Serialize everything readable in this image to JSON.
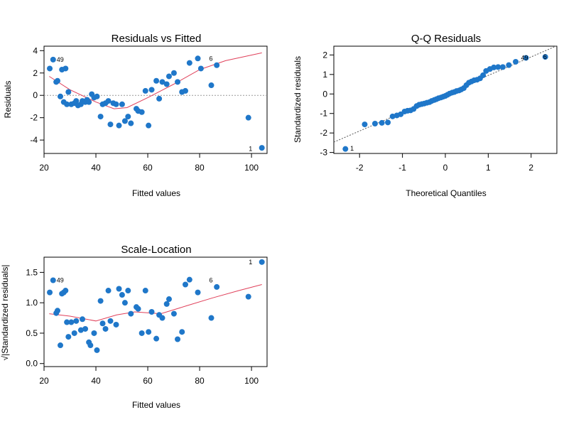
{
  "colors": {
    "points": "#1f77c9",
    "smooth": "#e0405a",
    "frame": "#000000",
    "reference": "#9a9a9a"
  },
  "chart_data": [
    {
      "type": "scatter",
      "title": "Residuals vs Fitted",
      "xlabel": "Fitted values",
      "ylabel": "Residuals",
      "xlim": [
        20,
        106
      ],
      "ylim": [
        -5.2,
        4.4
      ],
      "xticks": [
        20,
        40,
        60,
        80,
        100
      ],
      "yticks": [
        -4,
        -2,
        0,
        2,
        4
      ],
      "reference_line": {
        "y": 0,
        "style": "dotted"
      },
      "point_labels": [
        {
          "text": "49",
          "x": 23.5,
          "y": 3.2
        },
        {
          "text": "6",
          "x": 82.3,
          "y": 3.3
        },
        {
          "text": "1",
          "x": 102.5,
          "y": -4.8
        }
      ],
      "points": [
        [
          22.2,
          2.4
        ],
        [
          23.5,
          3.2
        ],
        [
          24.7,
          1.2
        ],
        [
          25.2,
          1.3
        ],
        [
          26.3,
          -0.1
        ],
        [
          26.9,
          2.3
        ],
        [
          27.6,
          -0.6
        ],
        [
          28.3,
          2.4
        ],
        [
          28.8,
          -0.8
        ],
        [
          29.4,
          0.3
        ],
        [
          30.5,
          -0.8
        ],
        [
          31.7,
          -0.7
        ],
        [
          32.4,
          -0.5
        ],
        [
          33.1,
          -0.9
        ],
        [
          34.2,
          -0.8
        ],
        [
          34.8,
          -0.5
        ],
        [
          35.9,
          -0.6
        ],
        [
          36.6,
          -0.4
        ],
        [
          37.3,
          -0.6
        ],
        [
          38.4,
          0.1
        ],
        [
          39.3,
          -0.2
        ],
        [
          40.4,
          -0.1
        ],
        [
          41.8,
          -1.9
        ],
        [
          42.6,
          -0.8
        ],
        [
          43.7,
          -0.7
        ],
        [
          44.8,
          -0.5
        ],
        [
          45.6,
          -2.6
        ],
        [
          46.7,
          -0.7
        ],
        [
          47.8,
          -0.8
        ],
        [
          48.9,
          -2.7
        ],
        [
          50.1,
          -0.8
        ],
        [
          51.2,
          -2.3
        ],
        [
          52.4,
          -1.9
        ],
        [
          53.5,
          -2.5
        ],
        [
          55.6,
          -1.2
        ],
        [
          56.3,
          -1.4
        ],
        [
          57.7,
          -1.5
        ],
        [
          59.1,
          0.4
        ],
        [
          60.3,
          -2.7
        ],
        [
          61.5,
          0.5
        ],
        [
          63.3,
          1.3
        ],
        [
          64.4,
          -0.3
        ],
        [
          65.6,
          1.2
        ],
        [
          67.3,
          1.0
        ],
        [
          68.2,
          1.7
        ],
        [
          70.1,
          2.0
        ],
        [
          71.5,
          1.2
        ],
        [
          73.2,
          0.3
        ],
        [
          74.5,
          0.4
        ],
        [
          76.1,
          2.9
        ],
        [
          79.3,
          3.3
        ],
        [
          80.5,
          2.4
        ],
        [
          84.5,
          0.9
        ],
        [
          86.6,
          2.7
        ],
        [
          98.8,
          -2.0
        ],
        [
          104.0,
          -4.7
        ]
      ],
      "smooth": [
        [
          22,
          1.7
        ],
        [
          30,
          0.5
        ],
        [
          40,
          -0.6
        ],
        [
          47,
          -1.2
        ],
        [
          52,
          -1.1
        ],
        [
          60,
          -0.2
        ],
        [
          70,
          1.0
        ],
        [
          80,
          2.3
        ],
        [
          90,
          3.1
        ],
        [
          104,
          3.8
        ]
      ]
    },
    {
      "type": "scatter",
      "title": "Q-Q Residuals",
      "xlabel": "Theoretical Quantiles",
      "ylabel": "Standardized residuals",
      "xlim": [
        -2.6,
        2.6
      ],
      "ylim": [
        -3.05,
        2.45
      ],
      "xticks": [
        -2,
        -1,
        0,
        1,
        2
      ],
      "yticks": [
        -3,
        -2,
        -1,
        0,
        1,
        2
      ],
      "reference_line": {
        "slope": 0.95,
        "intercept": 0.0,
        "style": "dotted"
      },
      "point_labels": [
        {
          "text": "1",
          "x": -2.3,
          "y": -2.8
        },
        {
          "text": "49",
          "x": 1.68,
          "y": 1.85
        },
        {
          "text": "6",
          "x": 2.2,
          "y": 1.9
        }
      ],
      "points": [
        [
          -2.33,
          -2.82
        ],
        [
          -1.88,
          -1.56
        ],
        [
          -1.64,
          -1.52
        ],
        [
          -1.48,
          -1.48
        ],
        [
          -1.34,
          -1.46
        ],
        [
          -1.23,
          -1.15
        ],
        [
          -1.13,
          -1.1
        ],
        [
          -1.04,
          -1.04
        ],
        [
          -0.95,
          -0.9
        ],
        [
          -0.88,
          -0.86
        ],
        [
          -0.81,
          -0.84
        ],
        [
          -0.74,
          -0.77
        ],
        [
          -0.67,
          -0.62
        ],
        [
          -0.61,
          -0.55
        ],
        [
          -0.55,
          -0.52
        ],
        [
          -0.49,
          -0.49
        ],
        [
          -0.43,
          -0.45
        ],
        [
          -0.37,
          -0.42
        ],
        [
          -0.32,
          -0.36
        ],
        [
          -0.26,
          -0.31
        ],
        [
          -0.21,
          -0.27
        ],
        [
          -0.16,
          -0.22
        ],
        [
          -0.1,
          -0.18
        ],
        [
          -0.05,
          -0.14
        ],
        [
          0.0,
          -0.1
        ],
        [
          0.05,
          -0.04
        ],
        [
          0.1,
          0.02
        ],
        [
          0.16,
          0.07
        ],
        [
          0.21,
          0.1
        ],
        [
          0.26,
          0.15
        ],
        [
          0.32,
          0.18
        ],
        [
          0.37,
          0.23
        ],
        [
          0.43,
          0.3
        ],
        [
          0.49,
          0.45
        ],
        [
          0.55,
          0.58
        ],
        [
          0.61,
          0.64
        ],
        [
          0.67,
          0.7
        ],
        [
          0.74,
          0.73
        ],
        [
          0.81,
          0.8
        ],
        [
          0.88,
          0.96
        ],
        [
          0.95,
          1.18
        ],
        [
          1.04,
          1.28
        ],
        [
          1.13,
          1.36
        ],
        [
          1.23,
          1.38
        ],
        [
          1.34,
          1.38
        ],
        [
          1.48,
          1.48
        ],
        [
          1.64,
          1.65
        ],
        [
          1.88,
          1.85
        ],
        [
          2.33,
          1.9
        ]
      ]
    },
    {
      "type": "scatter",
      "title": "Scale-Location",
      "xlabel": "Fitted values",
      "ylabel": "√|Standardized residuals|",
      "xlim": [
        20,
        106
      ],
      "ylim": [
        -0.05,
        1.75
      ],
      "xticks": [
        20,
        40,
        60,
        80,
        100
      ],
      "yticks": [
        0.0,
        0.5,
        1.0,
        1.5
      ],
      "ytick_labels": [
        "0.0",
        "0.5",
        "1.0",
        "1.5"
      ],
      "point_labels": [
        {
          "text": "49",
          "x": 23.5,
          "y": 1.37
        },
        {
          "text": "6",
          "x": 82.3,
          "y": 1.37
        },
        {
          "text": "1",
          "x": 102.5,
          "y": 1.67
        }
      ],
      "points": [
        [
          22.2,
          1.17
        ],
        [
          23.5,
          1.37
        ],
        [
          24.7,
          0.83
        ],
        [
          25.2,
          0.87
        ],
        [
          26.3,
          0.3
        ],
        [
          26.9,
          1.15
        ],
        [
          27.6,
          1.17
        ],
        [
          28.3,
          1.2
        ],
        [
          28.8,
          0.68
        ],
        [
          29.4,
          0.44
        ],
        [
          30.5,
          0.68
        ],
        [
          31.7,
          0.5
        ],
        [
          32.4,
          0.7
        ],
        [
          34.2,
          0.55
        ],
        [
          34.8,
          0.73
        ],
        [
          35.9,
          0.57
        ],
        [
          37.3,
          0.35
        ],
        [
          37.9,
          0.3
        ],
        [
          39.3,
          0.5
        ],
        [
          40.4,
          0.22
        ],
        [
          41.8,
          1.03
        ],
        [
          42.6,
          0.66
        ],
        [
          43.7,
          0.57
        ],
        [
          44.8,
          1.2
        ],
        [
          45.6,
          0.7
        ],
        [
          47.8,
          0.64
        ],
        [
          48.9,
          1.23
        ],
        [
          50.1,
          1.13
        ],
        [
          51.2,
          1.0
        ],
        [
          52.4,
          1.2
        ],
        [
          53.5,
          0.82
        ],
        [
          55.6,
          0.93
        ],
        [
          56.3,
          0.9
        ],
        [
          57.7,
          0.5
        ],
        [
          59.1,
          1.2
        ],
        [
          60.3,
          0.52
        ],
        [
          61.5,
          0.85
        ],
        [
          63.3,
          0.41
        ],
        [
          64.4,
          0.8
        ],
        [
          65.6,
          0.75
        ],
        [
          67.3,
          0.98
        ],
        [
          68.2,
          1.06
        ],
        [
          70.1,
          0.82
        ],
        [
          71.5,
          0.4
        ],
        [
          73.2,
          0.52
        ],
        [
          74.5,
          1.3
        ],
        [
          76.1,
          1.38
        ],
        [
          79.3,
          1.17
        ],
        [
          84.5,
          0.75
        ],
        [
          86.6,
          1.26
        ],
        [
          98.8,
          1.1
        ],
        [
          104.0,
          1.67
        ]
      ],
      "smooth": [
        [
          22,
          0.82
        ],
        [
          30,
          0.78
        ],
        [
          40,
          0.7
        ],
        [
          48,
          0.8
        ],
        [
          55,
          0.85
        ],
        [
          65,
          0.82
        ],
        [
          75,
          0.95
        ],
        [
          85,
          1.08
        ],
        [
          95,
          1.2
        ],
        [
          104,
          1.3
        ]
      ]
    }
  ]
}
